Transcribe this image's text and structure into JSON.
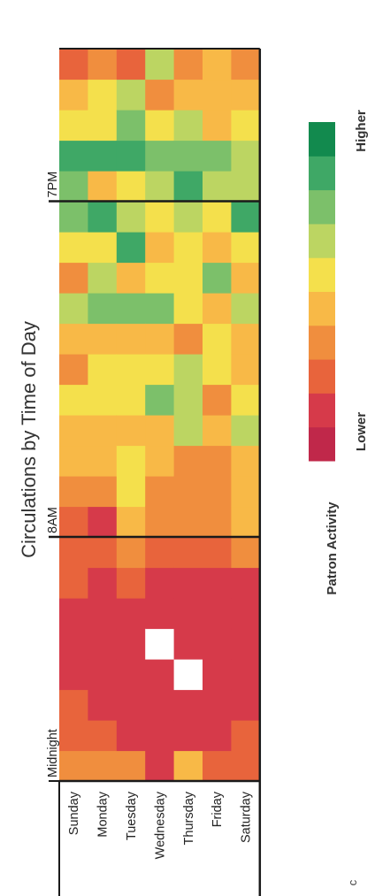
{
  "chart_data": {
    "type": "heatmap",
    "title": "Circulations by Time of Day",
    "days": [
      "Sunday",
      "Monday",
      "Tuesday",
      "Wednesday",
      "Thursday",
      "Friday",
      "Saturday"
    ],
    "hour_markers": [
      "Midnight",
      "8AM",
      "7PM"
    ],
    "hours": [
      0,
      1,
      2,
      3,
      4,
      5,
      6,
      7,
      8,
      9,
      10,
      11,
      12,
      13,
      14,
      15,
      16,
      17,
      18,
      19,
      20,
      21,
      22,
      23
    ],
    "value_scale": [
      0,
      9
    ],
    "values": [
      [
        3,
        2,
        2,
        1,
        1,
        1,
        2,
        2,
        2,
        3,
        4,
        4,
        5,
        3,
        4,
        6,
        3,
        5,
        7,
        7,
        8,
        5,
        4,
        2
      ],
      [
        3,
        2,
        1,
        1,
        1,
        1,
        1,
        2,
        1,
        3,
        4,
        4,
        5,
        5,
        4,
        7,
        6,
        5,
        8,
        4,
        8,
        5,
        5,
        3
      ],
      [
        3,
        1,
        1,
        1,
        1,
        1,
        2,
        3,
        4,
        5,
        5,
        4,
        5,
        5,
        4,
        7,
        4,
        8,
        6,
        5,
        8,
        7,
        6,
        2
      ],
      [
        1,
        1,
        1,
        1,
        null,
        1,
        1,
        2,
        3,
        3,
        4,
        4,
        7,
        5,
        4,
        7,
        5,
        4,
        5,
        6,
        7,
        5,
        3,
        6
      ],
      [
        4,
        1,
        1,
        null,
        1,
        1,
        1,
        2,
        3,
        3,
        3,
        6,
        6,
        6,
        3,
        5,
        5,
        5,
        6,
        8,
        7,
        6,
        4,
        3
      ],
      [
        2,
        1,
        1,
        1,
        1,
        1,
        1,
        2,
        3,
        3,
        3,
        4,
        3,
        5,
        5,
        4,
        7,
        4,
        5,
        6,
        7,
        4,
        4,
        4
      ],
      [
        2,
        2,
        1,
        1,
        1,
        1,
        1,
        3,
        4,
        4,
        4,
        6,
        5,
        4,
        4,
        6,
        4,
        5,
        8,
        6,
        6,
        5,
        4,
        3
      ]
    ],
    "legend": {
      "title": "Patron Activity",
      "low_label": "Lower",
      "high_label": "Higher",
      "colors": [
        "#c0284a",
        "#d63a4a",
        "#e8643c",
        "#f08e3e",
        "#f8b947",
        "#f4e04c",
        "#bcd562",
        "#7cc06a",
        "#3fa866",
        "#128a4e"
      ]
    },
    "footnote": "c"
  }
}
